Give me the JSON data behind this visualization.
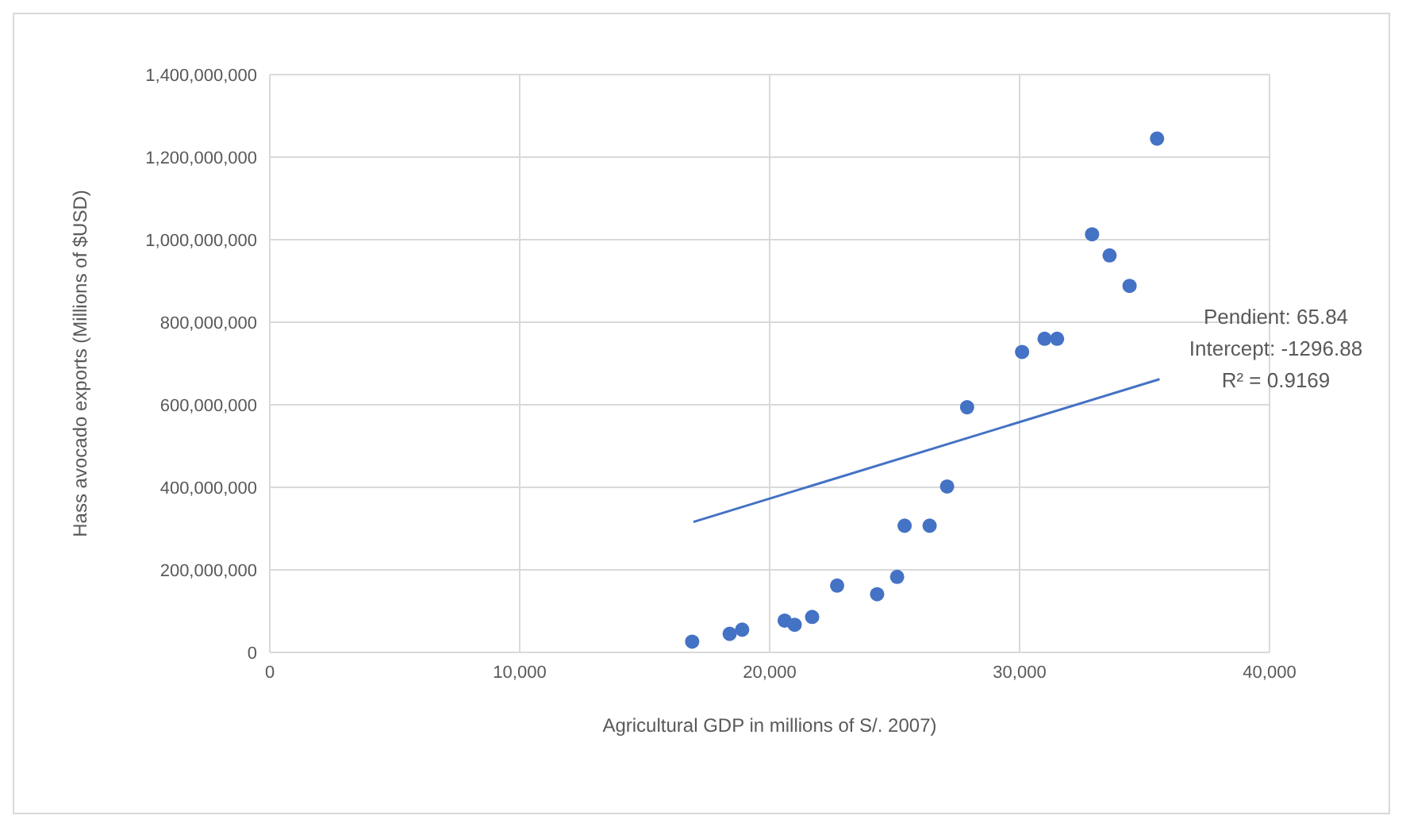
{
  "chart_data": {
    "type": "scatter",
    "xlabel": "Agricultural GDP in millions of S/. 2007)",
    "ylabel": "Hass avocado exports (Millions of $USD)",
    "xlim": [
      0,
      40000
    ],
    "xticks": [
      {
        "value": 0,
        "label": "0"
      },
      {
        "value": 10000,
        "label": "10,000"
      },
      {
        "value": 20000,
        "label": "20,000"
      },
      {
        "value": 30000,
        "label": "30,000"
      },
      {
        "value": 40000,
        "label": "40,000"
      }
    ],
    "ylim": [
      0,
      1400000000
    ],
    "yticks": [
      {
        "value": 0,
        "label": "0"
      },
      {
        "value": 200000000,
        "label": "200,000,000"
      },
      {
        "value": 400000000,
        "label": "400,000,000"
      },
      {
        "value": 600000000,
        "label": "600,000,000"
      },
      {
        "value": 800000000,
        "label": "800,000,000"
      },
      {
        "value": 1000000000,
        "label": "1,000,000,000"
      },
      {
        "value": 1200000000,
        "label": "1,200,000,000"
      },
      {
        "value": 1400000000,
        "label": "1,400,000,000"
      }
    ],
    "grid": true,
    "marker": "circle",
    "series": [
      {
        "color": "#4472c4",
        "x": [
          16900,
          18400,
          18900,
          20600,
          21000,
          21700,
          22700,
          24300,
          25100,
          25400,
          26400,
          27100,
          27900,
          30100,
          31000,
          31500,
          32900,
          33600,
          34400,
          35500
        ],
        "values": [
          26000000,
          45000000,
          55000000,
          77000000,
          67000000,
          86000000,
          162000000,
          141000000,
          183000000,
          307000000,
          307000000,
          402000000,
          594000000,
          728000000,
          760000000,
          760000000,
          1013000000,
          962000000,
          888000000,
          1245000000
        ]
      },
      {
        "type": "line",
        "color": "#4472c4",
        "marker": "none",
        "x": [
          16950,
          35600
        ],
        "values": [
          316000000,
          662000000
        ]
      }
    ],
    "annotations": [
      "Pendient: 65.84",
      "Intercept: -1296.88",
      "R² = 0.9169"
    ]
  }
}
